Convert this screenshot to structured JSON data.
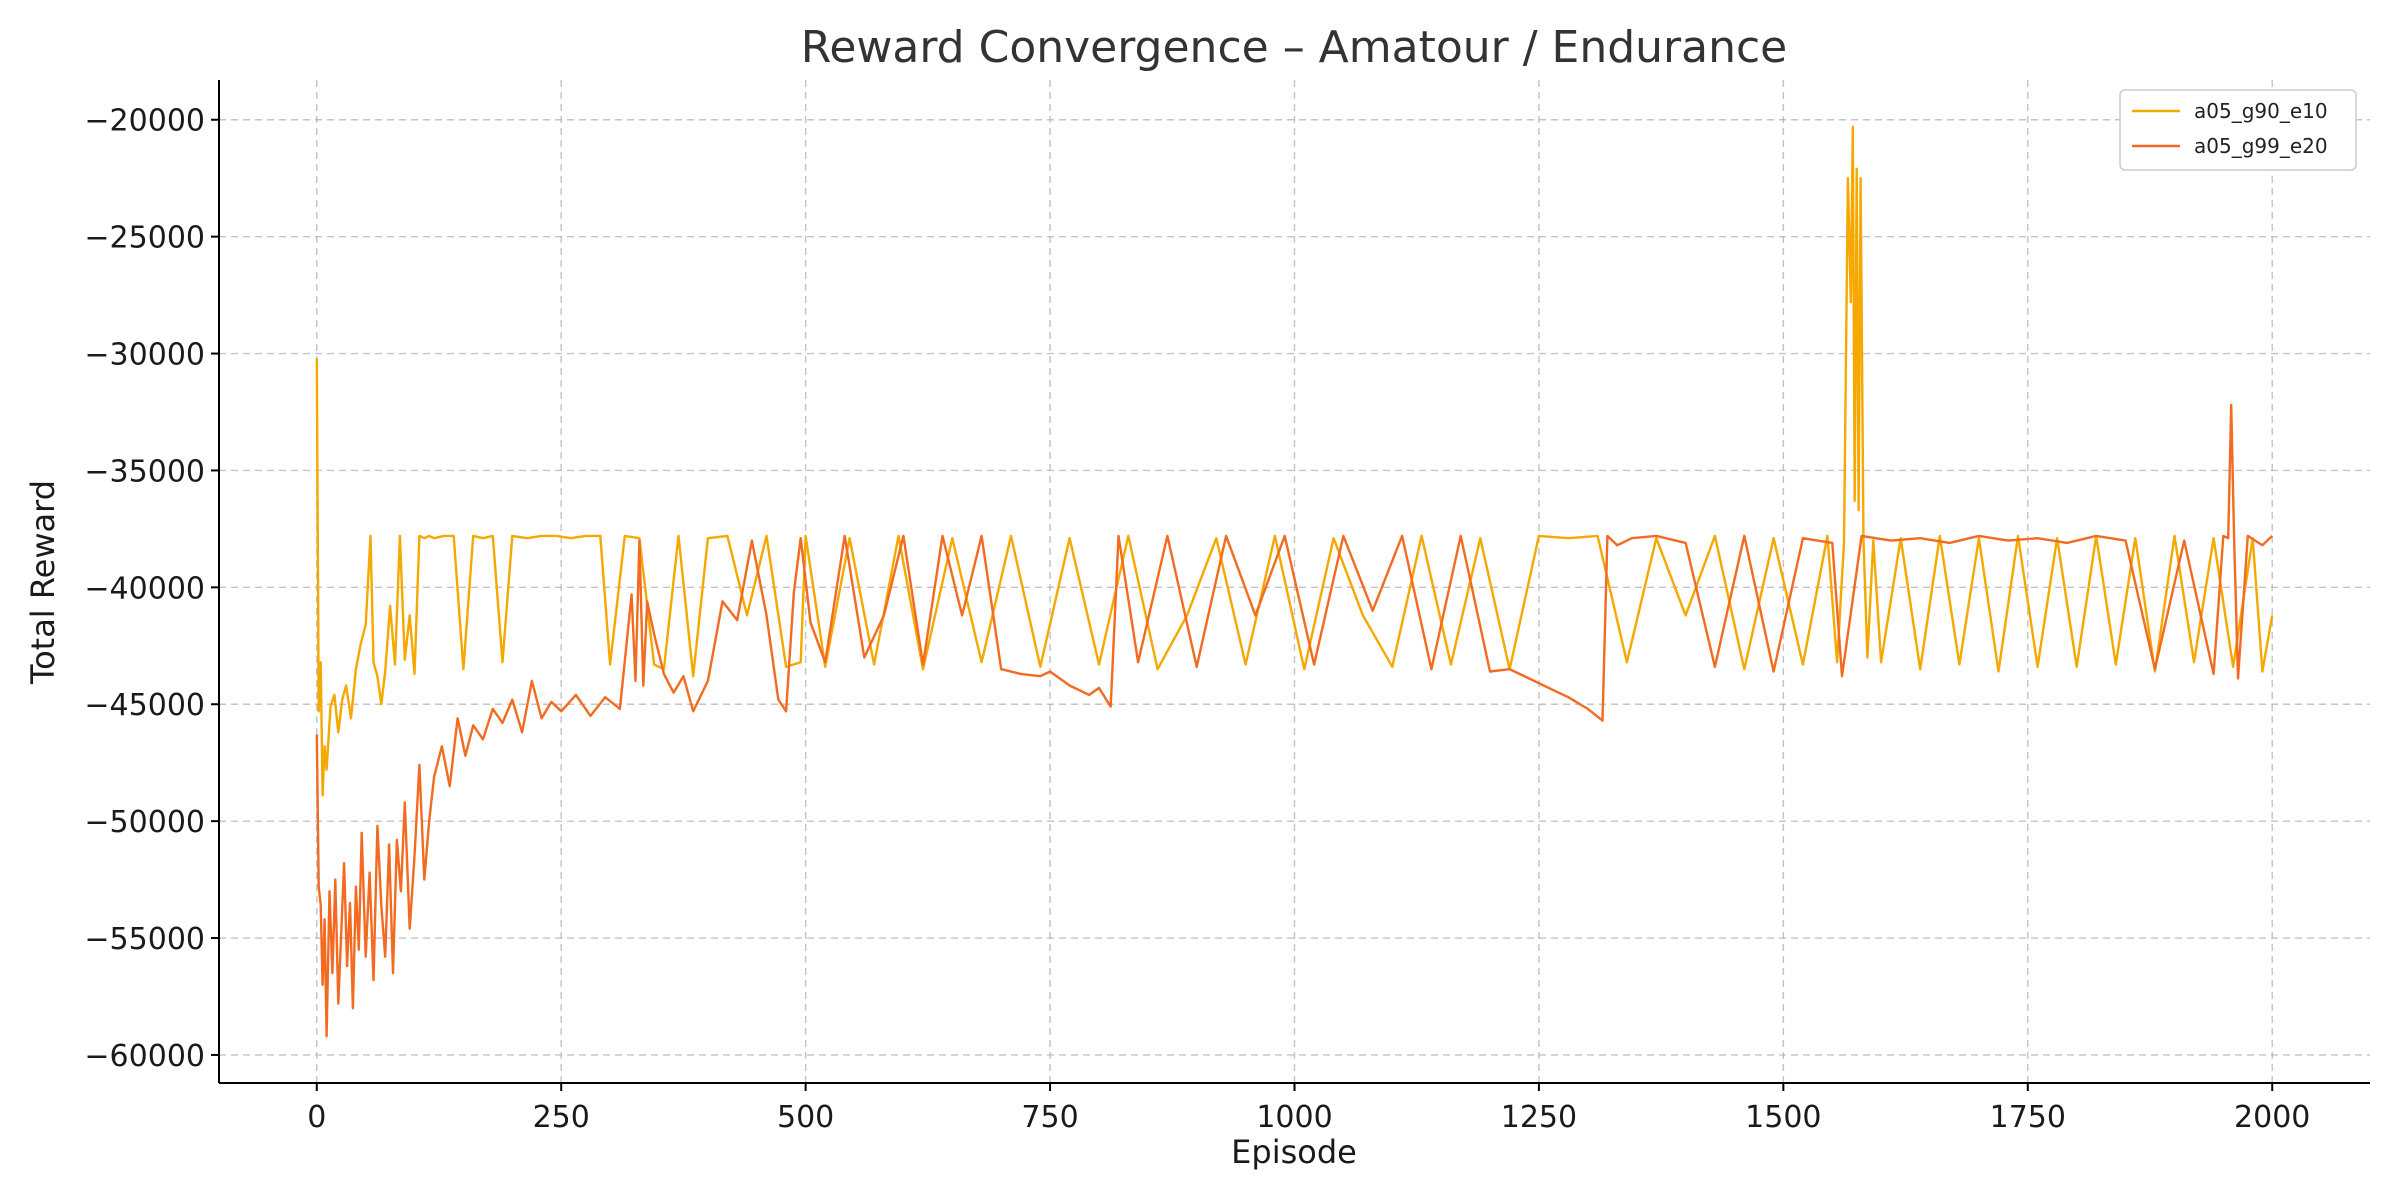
{
  "chart_data": {
    "type": "line",
    "title": "Reward Convergence – Amatour / Endurance",
    "xlabel": "Episode",
    "ylabel": "Total Reward",
    "xlim": [
      -100,
      2100
    ],
    "ylim": [
      -61200,
      -18300
    ],
    "x_ticks": [
      0,
      250,
      500,
      750,
      1000,
      1250,
      1500,
      1750,
      2000
    ],
    "y_ticks": [
      -20000,
      -25000,
      -30000,
      -35000,
      -40000,
      -45000,
      -50000,
      -55000,
      -60000
    ],
    "x_tick_labels": [
      "0",
      "250",
      "500",
      "750",
      "1000",
      "1250",
      "1500",
      "1750",
      "2000"
    ],
    "y_tick_labels": [
      "−20000",
      "−25000",
      "−30000",
      "−35000",
      "−40000",
      "−45000",
      "−50000",
      "−55000",
      "−60000"
    ],
    "grid": true,
    "legend_position": "top-right",
    "series": [
      {
        "name": "a05_g90_e10",
        "color": "#f5a800",
        "x": [
          0,
          2,
          4,
          6,
          8,
          10,
          14,
          18,
          22,
          26,
          30,
          35,
          40,
          45,
          50,
          55,
          58,
          62,
          66,
          70,
          75,
          80,
          85,
          90,
          95,
          100,
          105,
          110,
          115,
          120,
          130,
          140,
          150,
          160,
          170,
          180,
          190,
          200,
          215,
          230,
          245,
          260,
          275,
          290,
          300,
          315,
          330,
          345,
          355,
          370,
          385,
          400,
          420,
          440,
          460,
          480,
          495,
          500,
          520,
          545,
          570,
          595,
          620,
          650,
          680,
          710,
          740,
          770,
          800,
          830,
          860,
          890,
          920,
          950,
          980,
          1010,
          1040,
          1070,
          1100,
          1130,
          1160,
          1190,
          1220,
          1250,
          1280,
          1310,
          1340,
          1370,
          1400,
          1430,
          1460,
          1490,
          1520,
          1545,
          1555,
          1562,
          1566,
          1569,
          1571,
          1573,
          1575,
          1577,
          1579,
          1582,
          1586,
          1592,
          1600,
          1620,
          1640,
          1660,
          1680,
          1700,
          1720,
          1740,
          1760,
          1780,
          1800,
          1820,
          1840,
          1860,
          1880,
          1900,
          1920,
          1940,
          1960,
          1980,
          1990,
          2000
        ],
        "values": [
          -30200,
          -45300,
          -43200,
          -48900,
          -46800,
          -47800,
          -45100,
          -44600,
          -46200,
          -44800,
          -44200,
          -45600,
          -43500,
          -42400,
          -41600,
          -37800,
          -43200,
          -43800,
          -45000,
          -43600,
          -40800,
          -43300,
          -37800,
          -43100,
          -41200,
          -43700,
          -37800,
          -37900,
          -37800,
          -37900,
          -37800,
          -37800,
          -43500,
          -37800,
          -37900,
          -37800,
          -43200,
          -37800,
          -37900,
          -37800,
          -37800,
          -37900,
          -37800,
          -37800,
          -43300,
          -37800,
          -37900,
          -43300,
          -43500,
          -37800,
          -43800,
          -37900,
          -37800,
          -41200,
          -37800,
          -43400,
          -43200,
          -37800,
          -43400,
          -37900,
          -43300,
          -37800,
          -43500,
          -37900,
          -43200,
          -37800,
          -43400,
          -37900,
          -43300,
          -37800,
          -43500,
          -41200,
          -37900,
          -43300,
          -37800,
          -43500,
          -37900,
          -41200,
          -43400,
          -37800,
          -43300,
          -37900,
          -43500,
          -37800,
          -37900,
          -37800,
          -43200,
          -37900,
          -41200,
          -37800,
          -43500,
          -37900,
          -43300,
          -37800,
          -43200,
          -38100,
          -22500,
          -27800,
          -20300,
          -36300,
          -22100,
          -36700,
          -22500,
          -38000,
          -43000,
          -38000,
          -43200,
          -37900,
          -43500,
          -37800,
          -43300,
          -37900,
          -43600,
          -37800,
          -43400,
          -37900,
          -43400,
          -37800,
          -43300,
          -37900,
          -43600,
          -37800,
          -43200,
          -37900,
          -43400,
          -37900,
          -43600,
          -41200
        ]
      },
      {
        "name": "a05_g99_e20",
        "color": "#f26b21",
        "x": [
          0,
          2,
          4,
          6,
          8,
          10,
          13,
          16,
          19,
          22,
          25,
          28,
          31,
          34,
          37,
          40,
          43,
          46,
          50,
          54,
          58,
          62,
          66,
          70,
          74,
          78,
          82,
          86,
          90,
          95,
          100,
          105,
          110,
          115,
          120,
          128,
          136,
          144,
          152,
          160,
          170,
          180,
          190,
          200,
          210,
          220,
          230,
          240,
          250,
          265,
          280,
          295,
          310,
          322,
          326,
          330,
          334,
          338,
          345,
          355,
          365,
          375,
          385,
          400,
          415,
          430,
          445,
          460,
          472,
          480,
          488,
          495,
          505,
          520,
          540,
          560,
          580,
          600,
          620,
          640,
          660,
          680,
          700,
          720,
          740,
          750,
          770,
          790,
          800,
          812,
          820,
          840,
          870,
          900,
          930,
          960,
          990,
          1020,
          1050,
          1080,
          1110,
          1140,
          1170,
          1200,
          1220,
          1240,
          1260,
          1280,
          1300,
          1315,
          1320,
          1330,
          1345,
          1370,
          1400,
          1430,
          1460,
          1490,
          1520,
          1550,
          1560,
          1580,
          1610,
          1640,
          1670,
          1700,
          1730,
          1760,
          1790,
          1820,
          1850,
          1880,
          1910,
          1940,
          1950,
          1955,
          1958,
          1961,
          1965,
          1975,
          1990,
          2000
        ],
        "values": [
          -46300,
          -52800,
          -53600,
          -57000,
          -54200,
          -59200,
          -53000,
          -56500,
          -52500,
          -57800,
          -54800,
          -51800,
          -56200,
          -53500,
          -58000,
          -52800,
          -55500,
          -50500,
          -55800,
          -52200,
          -56800,
          -50200,
          -53600,
          -55800,
          -51000,
          -56500,
          -50800,
          -53000,
          -49200,
          -54600,
          -51500,
          -47600,
          -52500,
          -50000,
          -48100,
          -46800,
          -48500,
          -45600,
          -47200,
          -45900,
          -46500,
          -45200,
          -45800,
          -44800,
          -46200,
          -44000,
          -45600,
          -44900,
          -45300,
          -44600,
          -45500,
          -44700,
          -45200,
          -40300,
          -44000,
          -38000,
          -44200,
          -40600,
          -42000,
          -43700,
          -44500,
          -43800,
          -45300,
          -44000,
          -40600,
          -41400,
          -38000,
          -41200,
          -44800,
          -45300,
          -40200,
          -37900,
          -41500,
          -43200,
          -37800,
          -43000,
          -41200,
          -37800,
          -43300,
          -37800,
          -41200,
          -37800,
          -43500,
          -43700,
          -43800,
          -43600,
          -44200,
          -44600,
          -44300,
          -45100,
          -37800,
          -43200,
          -37800,
          -43400,
          -37800,
          -41200,
          -37800,
          -43300,
          -37800,
          -41000,
          -37800,
          -43500,
          -37800,
          -43600,
          -43500,
          -43900,
          -44300,
          -44700,
          -45200,
          -45700,
          -37800,
          -38200,
          -37900,
          -37800,
          -38100,
          -43400,
          -37800,
          -43600,
          -37900,
          -38100,
          -43800,
          -37800,
          -38000,
          -37900,
          -38100,
          -37800,
          -38000,
          -37900,
          -38100,
          -37800,
          -38000,
          -43500,
          -38000,
          -43700,
          -37800,
          -37900,
          -32200,
          -37900,
          -43900,
          -37800,
          -38200,
          -37800
        ]
      }
    ]
  }
}
